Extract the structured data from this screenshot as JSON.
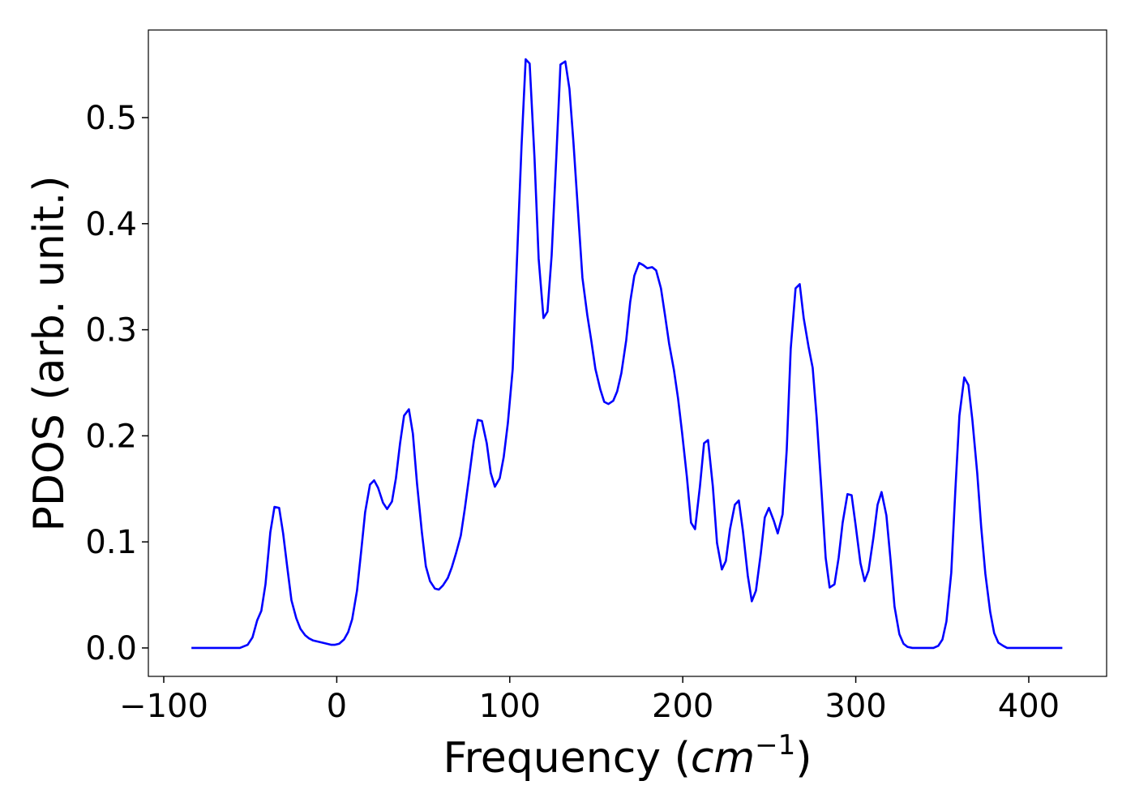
{
  "chart_data": {
    "type": "line",
    "xlabel": [
      "Frequency (",
      "cm",
      "−1",
      ")"
    ],
    "ylabel": "PDOS (arb. unit.)",
    "color": "#0000ff",
    "xlim": [
      -108.9,
      445.0
    ],
    "ylim": [
      -0.0268,
      0.5826
    ],
    "xticks": [
      {
        "value": -100,
        "label": "−100"
      },
      0,
      100,
      200,
      300,
      400
    ],
    "yticks": [
      {
        "value": 0,
        "label": "0.0"
      },
      0.1,
      0.2,
      0.3,
      0.4,
      0.5
    ],
    "x": [
      -84,
      -56,
      -51.5,
      -48.7,
      -46,
      -43.6,
      -41.2,
      -38.4,
      -36,
      -33.3,
      -31,
      -28.6,
      -26.2,
      -23.4,
      -21,
      -18.3,
      -16,
      -13.6,
      -8.4,
      -3.3,
      -1,
      1.4,
      4.2,
      6.6,
      8.9,
      11.7,
      14.1,
      16.4,
      19.2,
      21.6,
      23.9,
      26.7,
      29.1,
      31.9,
      34.2,
      36.6,
      38.9,
      41.7,
      44,
      46.4,
      49.2,
      51.5,
      53.9,
      56.7,
      59,
      61.4,
      64.2,
      66.5,
      68.9,
      71.7,
      74,
      76.4,
      79.2,
      81.5,
      83.9,
      86.7,
      89,
      91.4,
      94.2,
      96.5,
      98.9,
      101.7,
      104,
      106.8,
      109.2,
      111.5,
      114.3,
      116.7,
      119.5,
      121.8,
      124.2,
      127,
      129.3,
      132.1,
      134.5,
      136.8,
      139.6,
      142,
      144.8,
      147.1,
      149.5,
      152.3,
      154.6,
      157,
      159.8,
      162.1,
      164.5,
      167.3,
      169.6,
      172,
      174.8,
      177.1,
      179.5,
      182.3,
      184.6,
      187.4,
      189.8,
      192.1,
      194.9,
      197.3,
      199.6,
      202.4,
      204.8,
      207.1,
      209.9,
      212.3,
      214.6,
      217.4,
      219.8,
      222.6,
      224.9,
      227.3,
      230.1,
      232.4,
      234.8,
      237.6,
      239.9,
      242.3,
      245.1,
      247.4,
      249.8,
      252.6,
      254.9,
      257.7,
      260.1,
      262.4,
      265.2,
      267.6,
      269.9,
      272.7,
      275.1,
      277.4,
      280.2,
      282.6,
      284.9,
      287.7,
      290.1,
      292.4,
      295.2,
      297.6,
      299.9,
      302.7,
      305.1,
      307.4,
      310.2,
      312.6,
      314.9,
      317.7,
      320.1,
      322.4,
      325.2,
      327.6,
      329.9,
      332.7,
      344.9,
      347.7,
      350.1,
      352.4,
      355.2,
      357.6,
      359.9,
      362.7,
      365.1,
      367.4,
      370.2,
      372.5,
      374.9,
      377.7,
      380,
      382.4,
      385.2,
      387.5,
      419.4
    ],
    "values": [
      0,
      0,
      0.003,
      0.01,
      0.026,
      0.035,
      0.06,
      0.109,
      0.133,
      0.132,
      0.108,
      0.076,
      0.045,
      0.028,
      0.018,
      0.012,
      0.009,
      0.007,
      0.005,
      0.003,
      0.003,
      0.004,
      0.008,
      0.015,
      0.027,
      0.054,
      0.091,
      0.128,
      0.154,
      0.158,
      0.151,
      0.137,
      0.131,
      0.138,
      0.16,
      0.193,
      0.219,
      0.225,
      0.202,
      0.155,
      0.109,
      0.077,
      0.063,
      0.056,
      0.055,
      0.059,
      0.066,
      0.076,
      0.089,
      0.106,
      0.131,
      0.16,
      0.195,
      0.215,
      0.214,
      0.193,
      0.165,
      0.152,
      0.16,
      0.18,
      0.212,
      0.263,
      0.359,
      0.473,
      0.555,
      0.551,
      0.462,
      0.367,
      0.311,
      0.317,
      0.37,
      0.466,
      0.55,
      0.553,
      0.527,
      0.477,
      0.408,
      0.349,
      0.314,
      0.29,
      0.263,
      0.244,
      0.232,
      0.23,
      0.233,
      0.242,
      0.259,
      0.29,
      0.326,
      0.351,
      0.363,
      0.361,
      0.358,
      0.359,
      0.356,
      0.339,
      0.313,
      0.287,
      0.262,
      0.235,
      0.203,
      0.161,
      0.118,
      0.112,
      0.152,
      0.193,
      0.196,
      0.152,
      0.099,
      0.074,
      0.082,
      0.112,
      0.135,
      0.139,
      0.11,
      0.068,
      0.044,
      0.054,
      0.089,
      0.123,
      0.132,
      0.12,
      0.108,
      0.126,
      0.187,
      0.282,
      0.339,
      0.343,
      0.311,
      0.284,
      0.264,
      0.217,
      0.148,
      0.085,
      0.057,
      0.06,
      0.085,
      0.118,
      0.145,
      0.144,
      0.116,
      0.08,
      0.063,
      0.073,
      0.104,
      0.135,
      0.147,
      0.125,
      0.083,
      0.039,
      0.013,
      0.004,
      0.001,
      0,
      0,
      0.002,
      0.008,
      0.025,
      0.071,
      0.15,
      0.219,
      0.255,
      0.248,
      0.215,
      0.165,
      0.114,
      0.07,
      0.034,
      0.014,
      0.005,
      0.002,
      0,
      0
    ]
  }
}
